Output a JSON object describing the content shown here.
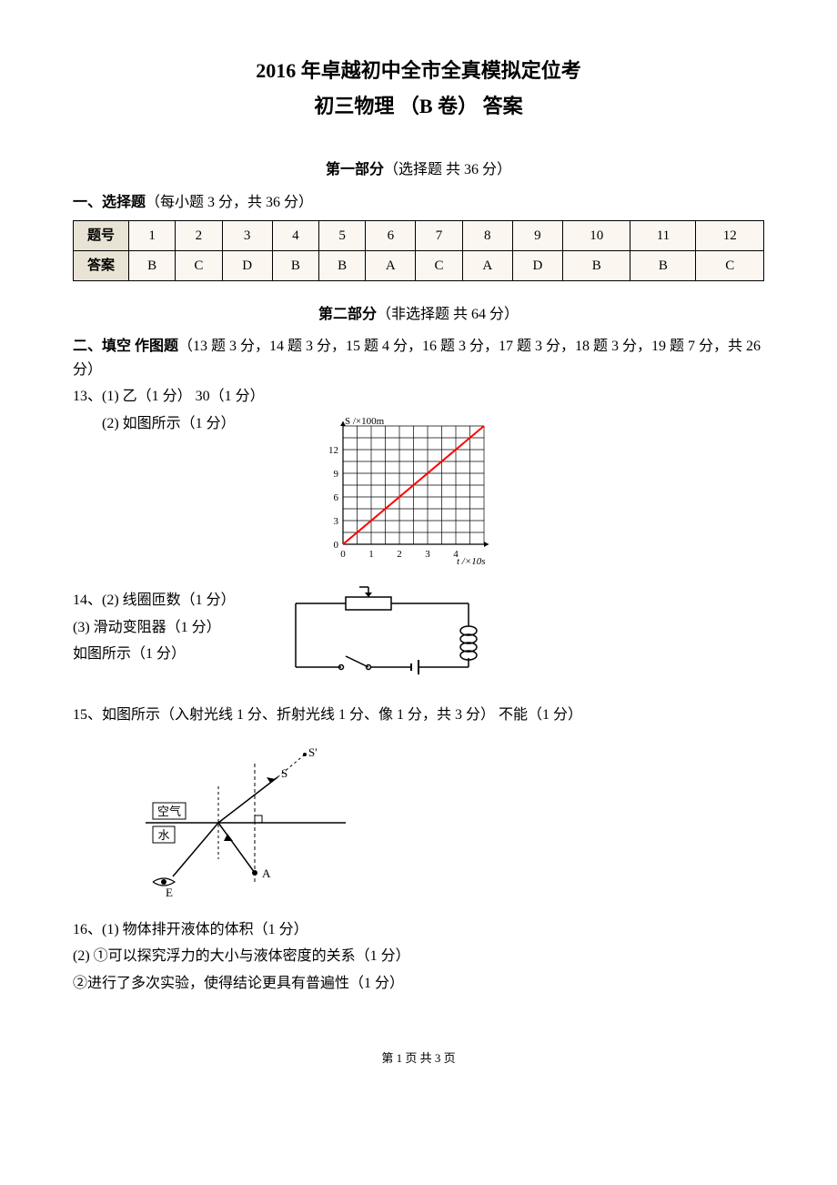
{
  "header": {
    "title_line1": "2016 年卓越初中全市全真模拟定位考",
    "title_line2": "初三物理 （B 卷） 答案"
  },
  "part1": {
    "heading_bold": "第一部分",
    "heading_rest": "（选择题  共 36 分）",
    "section_label": "一、选择题",
    "section_rest": "（每小题 3 分，共 36 分）",
    "table": {
      "header_label": "题号",
      "answer_label": "答案",
      "numbers": [
        "1",
        "2",
        "3",
        "4",
        "5",
        "6",
        "7",
        "8",
        "9",
        "10",
        "11",
        "12"
      ],
      "answers": [
        "B",
        "C",
        "D",
        "B",
        "B",
        "A",
        "C",
        "A",
        "D",
        "B",
        "B",
        "C"
      ],
      "header_bg": "#e8e3d4",
      "cell_bg": "#fbf7f0",
      "border_color": "#000000"
    }
  },
  "part2": {
    "heading_bold": "第二部分",
    "heading_rest": "（非选择题  共 64 分）",
    "section_label": "二、填空 作图题",
    "section_rest": "（13 题 3 分，14 题 3 分，15 题 4 分，16 题 3 分，17 题 3 分，18 题 3 分，19 题 7 分，共 26 分）"
  },
  "q13": {
    "line1": "13、(1) 乙（1 分）    30（1 分）",
    "line2": "(2) 如图所示（1 分）",
    "chart": {
      "type": "line",
      "x_label": "t /×10s",
      "y_label": "S /×100m",
      "x_ticks": [
        0,
        1,
        2,
        3,
        4
      ],
      "y_ticks": [
        0,
        3,
        6,
        9,
        12
      ],
      "xlim": [
        0,
        5
      ],
      "ylim": [
        0,
        15
      ],
      "grid_color": "#000000",
      "background_color": "#ffffff",
      "line_color": "#ff0000",
      "line_width": 2,
      "points": [
        [
          0,
          0
        ],
        [
          5,
          15
        ]
      ],
      "label_fontsize": 11
    }
  },
  "q14": {
    "line1": "14、(2) 线圈匝数（1 分）",
    "line2": "(3) 滑动变阻器（1 分）",
    "line3": "如图所示（1 分）",
    "circuit": {
      "type": "circuit-diagram",
      "stroke_color": "#000000",
      "stroke_width": 1.5,
      "background_color": "#ffffff"
    }
  },
  "q15": {
    "line1": "15、如图所示（入射光线 1 分、折射光线 1 分、像 1 分，共 3 分）    不能（1 分）",
    "optics": {
      "type": "optics-diagram",
      "medium_top": "空气",
      "medium_bottom": "水",
      "point_S": "S",
      "point_Sprime": "S'",
      "point_A": "A",
      "point_E": "E",
      "stroke_color": "#000000",
      "stroke_width": 1.5,
      "background_color": "#ffffff"
    }
  },
  "q16": {
    "line1": "16、(1) 物体排开液体的体积（1 分）",
    "line2": "(2) ①可以探究浮力的大小与液体密度的关系（1 分）",
    "line3": "②进行了多次实验，使得结论更具有普遍性（1 分）"
  },
  "footer": {
    "text": "第 1 页 共 3 页"
  }
}
